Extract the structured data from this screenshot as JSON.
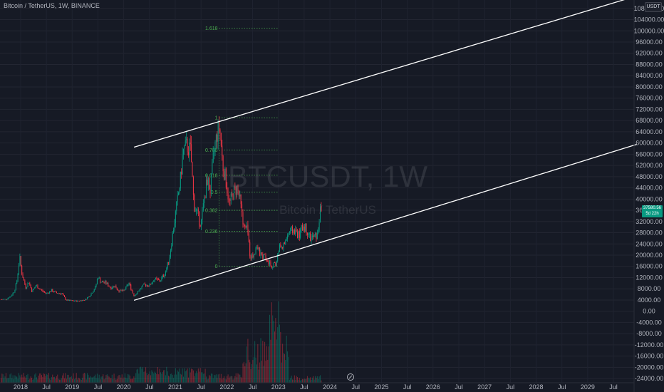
{
  "header": {
    "title": "Bitcoin / TetherUS, 1W, BINANCE",
    "currency_button": "USDT"
  },
  "watermark": {
    "symbol": "BTCUSDT, 1W",
    "description": "Bitcoin / TetherUS"
  },
  "price_badge": {
    "price": "37580.56",
    "countdown": "5d 22h"
  },
  "colors": {
    "background": "#161a25",
    "up": "#089981",
    "down": "#f23645",
    "fib": "#4caf50",
    "channel": "#ffffff"
  },
  "chart_data": {
    "type": "candlestick",
    "symbol": "BTCUSDT",
    "interval": "1W",
    "exchange": "BINANCE",
    "price_axis": {
      "ticks": [
        108000,
        104000,
        100000,
        96000,
        92000,
        88000,
        84000,
        80000,
        76000,
        72000,
        68000,
        64000,
        60000,
        56000,
        52000,
        48000,
        44000,
        40000,
        36000,
        32000,
        28000,
        24000,
        20000,
        16000,
        12000,
        8000,
        4000,
        0,
        -4000,
        -8000,
        -12000,
        -16000,
        -20000,
        -24000
      ],
      "tick_labels": [
        "108000.00",
        "104000.00",
        "100000.00",
        "96000.00",
        "92000.00",
        "88000.00",
        "84000.00",
        "80000.00",
        "76000.00",
        "72000.00",
        "68000.00",
        "64000.00",
        "60000.00",
        "56000.00",
        "52000.00",
        "48000.00",
        "44000.00",
        "40000.00",
        "36000.00",
        "32000.00",
        "28000.00",
        "24000.00",
        "20000.00",
        "16000.00",
        "12000.00",
        "8000.00",
        "4000.00",
        "0.00",
        "-4000.00",
        "-8000.00",
        "-12000.00",
        "-16000.00",
        "-20000.00",
        "-24000.00"
      ],
      "range": [
        -25500,
        111000
      ]
    },
    "time_axis": {
      "labels": [
        "2018",
        "Jul",
        "2019",
        "Jul",
        "2020",
        "Jul",
        "2021",
        "Jul",
        "2022",
        "Jul",
        "2023",
        "Jul",
        "2024",
        "Jul",
        "2025",
        "Jul",
        "2026",
        "Jul",
        "2027",
        "Jul",
        "2028",
        "Jul",
        "2029",
        "Jul"
      ],
      "range": [
        2017.6,
        2029.9
      ]
    },
    "price_path": [
      [
        2017.62,
        4200
      ],
      [
        2017.72,
        4300
      ],
      [
        2017.82,
        5600
      ],
      [
        2017.88,
        7300
      ],
      [
        2017.93,
        11000
      ],
      [
        2017.96,
        16000
      ],
      [
        2017.98,
        19500
      ],
      [
        2018.02,
        14000
      ],
      [
        2018.06,
        11000
      ],
      [
        2018.1,
        8500
      ],
      [
        2018.16,
        10500
      ],
      [
        2018.22,
        7000
      ],
      [
        2018.3,
        9200
      ],
      [
        2018.4,
        7500
      ],
      [
        2018.5,
        6300
      ],
      [
        2018.6,
        7400
      ],
      [
        2018.7,
        6500
      ],
      [
        2018.8,
        6300
      ],
      [
        2018.88,
        4000
      ],
      [
        2018.95,
        3800
      ],
      [
        2019.1,
        3600
      ],
      [
        2019.25,
        4100
      ],
      [
        2019.35,
        5800
      ],
      [
        2019.45,
        8500
      ],
      [
        2019.5,
        12500
      ],
      [
        2019.55,
        10500
      ],
      [
        2019.65,
        10200
      ],
      [
        2019.75,
        8300
      ],
      [
        2019.82,
        9200
      ],
      [
        2019.9,
        7300
      ],
      [
        2020.0,
        7200
      ],
      [
        2020.1,
        10000
      ],
      [
        2020.2,
        5500
      ],
      [
        2020.3,
        7600
      ],
      [
        2020.4,
        9500
      ],
      [
        2020.5,
        9200
      ],
      [
        2020.6,
        11500
      ],
      [
        2020.7,
        10800
      ],
      [
        2020.8,
        13500
      ],
      [
        2020.88,
        18500
      ],
      [
        2020.96,
        29000
      ],
      [
        2021.03,
        38000
      ],
      [
        2021.1,
        47000
      ],
      [
        2021.15,
        57000
      ],
      [
        2021.22,
        59000
      ],
      [
        2021.3,
        57000
      ],
      [
        2021.36,
        38000
      ],
      [
        2021.42,
        35000
      ],
      [
        2021.5,
        31000
      ],
      [
        2021.56,
        40000
      ],
      [
        2021.62,
        47000
      ],
      [
        2021.68,
        43000
      ],
      [
        2021.75,
        57000
      ],
      [
        2021.82,
        64000
      ],
      [
        2021.86,
        66000
      ],
      [
        2021.92,
        52000
      ],
      [
        2021.98,
        47000
      ],
      [
        2022.05,
        38000
      ],
      [
        2022.12,
        42000
      ],
      [
        2022.2,
        44000
      ],
      [
        2022.26,
        39000
      ],
      [
        2022.32,
        30000
      ],
      [
        2022.4,
        29000
      ],
      [
        2022.45,
        20000
      ],
      [
        2022.5,
        19500
      ],
      [
        2022.58,
        23500
      ],
      [
        2022.65,
        20000
      ],
      [
        2022.75,
        19500
      ],
      [
        2022.85,
        16500
      ],
      [
        2022.95,
        16600
      ],
      [
        2023.02,
        23000
      ],
      [
        2023.1,
        23500
      ],
      [
        2023.2,
        28000
      ],
      [
        2023.3,
        29000
      ],
      [
        2023.4,
        27000
      ],
      [
        2023.48,
        30500
      ],
      [
        2023.55,
        29300
      ],
      [
        2023.62,
        26000
      ],
      [
        2023.7,
        26500
      ],
      [
        2023.76,
        27000
      ],
      [
        2023.8,
        34500
      ],
      [
        2023.84,
        37500
      ]
    ],
    "fibonacci": {
      "levels": [
        {
          "label": "1.618",
          "price": 101000
        },
        {
          "label": "1",
          "price": 69000
        },
        {
          "label": "0.786",
          "price": 57500
        },
        {
          "label": "0.618",
          "price": 48500
        },
        {
          "label": "0.5",
          "price": 42500
        },
        {
          "label": "0.382",
          "price": 36000
        },
        {
          "label": "0.236",
          "price": 28500
        },
        {
          "label": "0",
          "price": 16000
        }
      ],
      "x_range": [
        2021.85,
        2023.0
      ]
    },
    "channel": {
      "upper": [
        [
          2020.2,
          58500
        ],
        [
          2030.05,
          113000
        ]
      ],
      "lower": [
        [
          2020.2,
          3900
        ],
        [
          2029.95,
          59500
        ]
      ]
    }
  }
}
